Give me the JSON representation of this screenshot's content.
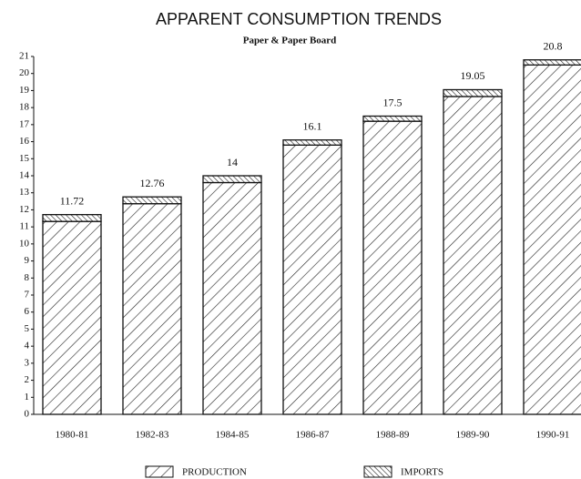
{
  "chart_data": {
    "type": "stacked_bar",
    "title": "APPARENT CONSUMPTION TRENDS",
    "subtitle": "Paper & Paper Board",
    "categories": [
      "1980-81",
      "1982-83",
      "1984-85",
      "1986-87",
      "1988-89",
      "1989-90",
      "1990-91"
    ],
    "series": [
      {
        "name": "PRODUCTION",
        "color": "#111111",
        "values": [
          11.32,
          12.36,
          13.6,
          15.8,
          17.2,
          18.65,
          20.5
        ]
      },
      {
        "name": "IMPORTS",
        "color": "#111111",
        "values": [
          0.4,
          0.4,
          0.4,
          0.3,
          0.3,
          0.4,
          0.3
        ]
      }
    ],
    "totals": [
      11.72,
      12.76,
      14,
      16.1,
      17.5,
      19.05,
      20.8
    ],
    "ylim": [
      0,
      21
    ],
    "yticks": [
      0,
      1,
      2,
      3,
      4,
      5,
      6,
      7,
      8,
      9,
      10,
      11,
      12,
      13,
      14,
      15,
      16,
      17,
      18,
      19,
      20,
      21
    ],
    "grid": false
  }
}
